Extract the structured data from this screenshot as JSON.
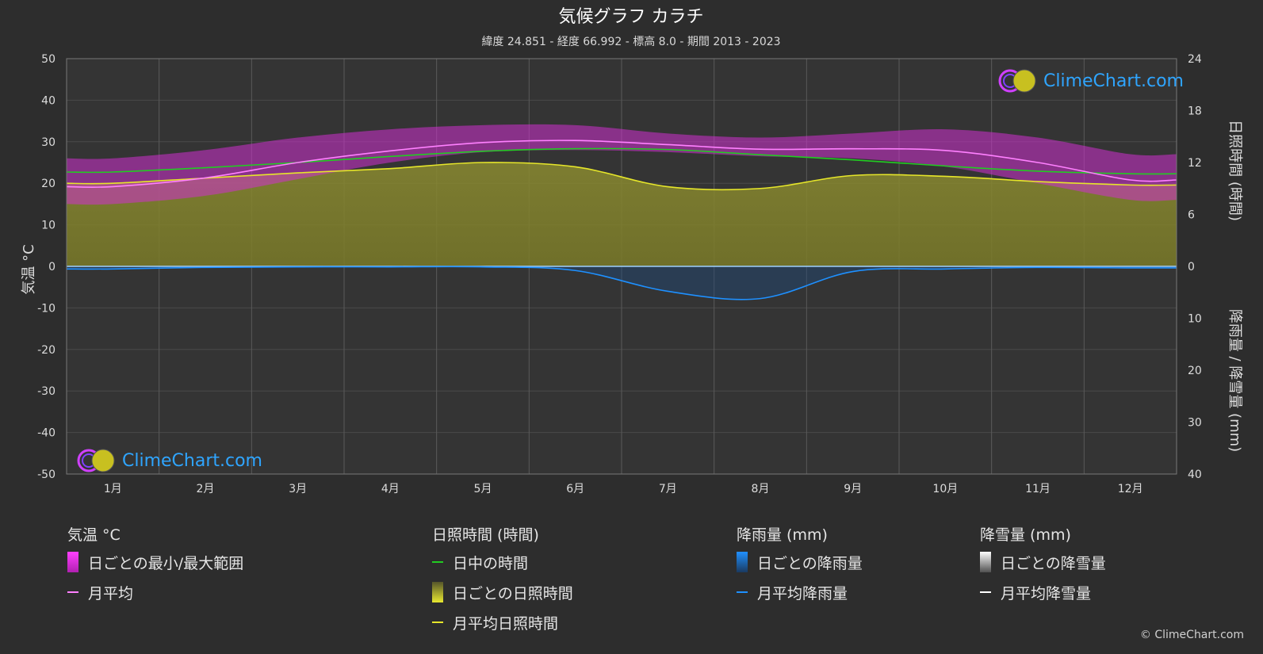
{
  "title": "気候グラフ カラチ",
  "subtitle": "緯度 24.851 - 経度 66.992 - 標高 8.0 - 期間 2013 - 2023",
  "brand": "ClimeChart.com",
  "copyright": "© ClimeChart.com",
  "axes": {
    "left_title": "気温 °C",
    "right_top_title": "日照時間 (時間)",
    "right_bottom_title": "降雨量 / 降雪量 (mm)"
  },
  "chart_data": {
    "type": "line",
    "categories": [
      "1月",
      "2月",
      "3月",
      "4月",
      "5月",
      "6月",
      "7月",
      "8月",
      "9月",
      "10月",
      "11月",
      "12月"
    ],
    "temperature_axis": {
      "ylim": [
        -50,
        50
      ],
      "ticks": [
        50,
        40,
        30,
        20,
        10,
        0,
        -10,
        -20,
        -30,
        -40,
        -50
      ]
    },
    "sunshine_axis": {
      "ylim": [
        0,
        24
      ],
      "ticks": [
        24,
        18,
        12,
        6,
        0
      ]
    },
    "precip_axis": {
      "ylim": [
        0,
        40
      ],
      "ticks": [
        0,
        10,
        20,
        30,
        40
      ],
      "inverted": true
    },
    "grid": true,
    "series": [
      {
        "name": "月平均",
        "unit": "°C",
        "color": "#ff80ff",
        "values": [
          19.2,
          21.3,
          25.0,
          27.8,
          29.8,
          30.3,
          29.3,
          28.2,
          28.3,
          27.9,
          25.0,
          20.8
        ]
      },
      {
        "name": "日中の時間",
        "unit": "h",
        "color": "#22cc22",
        "values": [
          10.9,
          11.4,
          12.0,
          12.7,
          13.3,
          13.6,
          13.5,
          12.9,
          12.3,
          11.6,
          11.0,
          10.7
        ]
      },
      {
        "name": "月平均日照時間",
        "unit": "h",
        "color": "#e6e62a",
        "values": [
          9.6,
          10.2,
          10.8,
          11.3,
          12.0,
          11.5,
          9.2,
          9.0,
          10.5,
          10.4,
          9.8,
          9.4
        ]
      },
      {
        "name": "月平均降雨量",
        "unit": "mm",
        "color": "#1e90ff",
        "values": [
          0.5,
          0.2,
          0.1,
          0.1,
          0.1,
          0.8,
          4.8,
          6.2,
          1.0,
          0.5,
          0.2,
          0.3
        ]
      },
      {
        "name": "月平均降雪量",
        "unit": "mm",
        "color": "#ffffff",
        "values": [
          0,
          0,
          0,
          0,
          0,
          0,
          0,
          0,
          0,
          0,
          0,
          0
        ]
      }
    ],
    "daily_range": {
      "name": "日ごとの最小/最大範囲",
      "min": [
        15,
        17,
        21,
        25,
        27.5,
        28,
        27.5,
        26.5,
        26,
        24,
        20,
        16
      ],
      "max": [
        26,
        28,
        31,
        33,
        34,
        34,
        32,
        31,
        32,
        33,
        31,
        27
      ]
    }
  },
  "legend": {
    "groups": [
      {
        "header": "気温 °C",
        "items": [
          {
            "label": "日ごとの最小/最大範囲",
            "kind": "box",
            "color": "#e040e0"
          },
          {
            "label": "月平均",
            "kind": "line",
            "color": "#ff80ff"
          }
        ]
      },
      {
        "header": "日照時間 (時間)",
        "items": [
          {
            "label": "日中の時間",
            "kind": "line",
            "color": "#22cc22"
          },
          {
            "label": "日ごとの日照時間",
            "kind": "box",
            "color": "#c8c83a"
          },
          {
            "label": "月平均日照時間",
            "kind": "line",
            "color": "#e6e62a"
          }
        ]
      },
      {
        "header": "降雨量 (mm)",
        "items": [
          {
            "label": "日ごとの降雨量",
            "kind": "box",
            "color": "#1e78d0"
          },
          {
            "label": "月平均降雨量",
            "kind": "line",
            "color": "#1e90ff"
          }
        ]
      },
      {
        "header": "降雪量 (mm)",
        "items": [
          {
            "label": "日ごとの降雪量",
            "kind": "box",
            "color": "#d8d8d8"
          },
          {
            "label": "月平均降雪量",
            "kind": "line",
            "color": "#ffffff"
          }
        ]
      }
    ]
  }
}
